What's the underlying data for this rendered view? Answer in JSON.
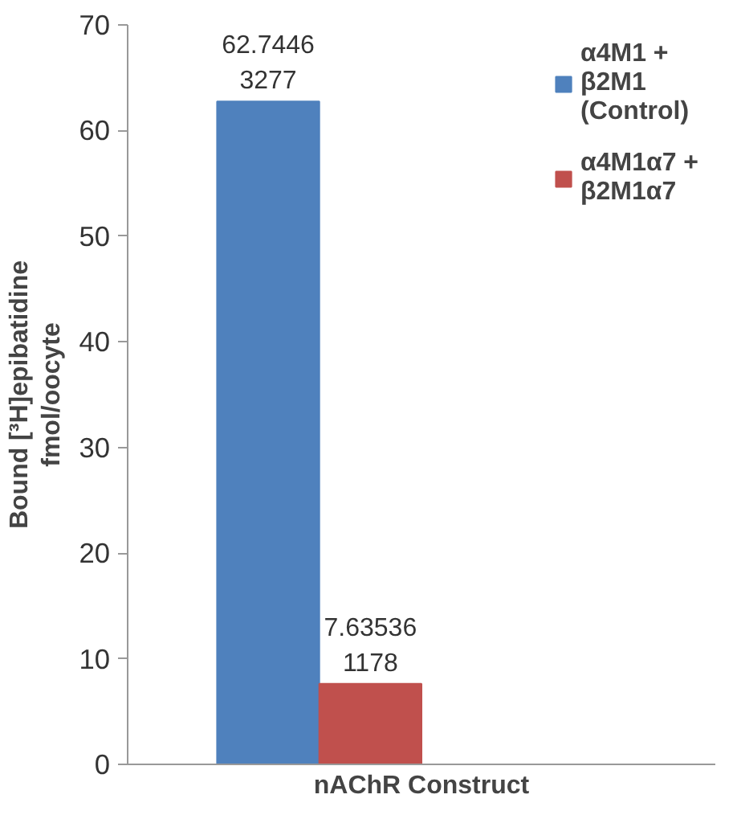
{
  "chart_data": {
    "type": "bar",
    "xlabel": "nAChR Construct",
    "ylabel": "Bound [³H]epibatidine fmol/oocyte",
    "categories": [
      null
    ],
    "series": [
      {
        "name": "α4M1 + β2M1 (Control)",
        "color": "#4f81bd",
        "values": [
          62.74463277
        ]
      },
      {
        "name": "α4M1α7 + β2M1α7",
        "color": "#c0504d",
        "values": [
          7.635361178
        ]
      }
    ],
    "ylim": [
      0,
      70
    ],
    "yticks": [
      0,
      10,
      20,
      30,
      40,
      50,
      60,
      70
    ],
    "grid": false,
    "legend": "top right",
    "data_labels": true
  }
}
